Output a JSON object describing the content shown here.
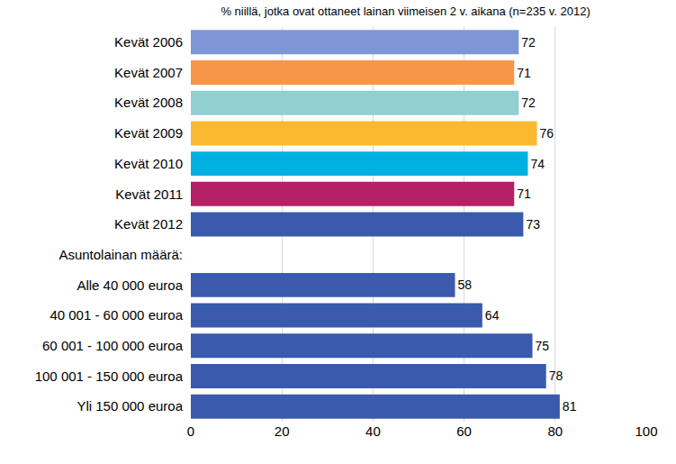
{
  "chart_data": {
    "type": "bar",
    "orientation": "horizontal",
    "title": "% niillä, jotka ovat ottaneet lainan viimeisen 2 v. aikana (n=235 v. 2012)",
    "categories": [
      "Kevät 2006",
      "Kevät 2007",
      "Kevät 2008",
      "Kevät 2009",
      "Kevät 2010",
      "Kevät 2011",
      "Kevät 2012",
      "Asuntolainan määrä:",
      "Alle 40 000 euroa",
      "40 001 - 60 000 euroa",
      "60 001 - 100 000 euroa",
      "100 001 - 150 000 euroa",
      "Yli 150 000 euroa"
    ],
    "values": [
      72,
      71,
      72,
      76,
      74,
      71,
      73,
      null,
      58,
      64,
      75,
      78,
      81
    ],
    "colors": [
      "#7f96d6",
      "#f79646",
      "#92cfd1",
      "#fbb931",
      "#00b0e0",
      "#b41f66",
      "#3a5aad",
      "#3a5aad",
      "#3a5aad",
      "#3a5aad",
      "#3a5aad",
      "#3a5aad",
      "#3a5aad"
    ],
    "xlim": [
      0,
      100
    ],
    "xticks": [
      0,
      20,
      40,
      60,
      80,
      100
    ],
    "grid": true,
    "data_labels": true
  }
}
